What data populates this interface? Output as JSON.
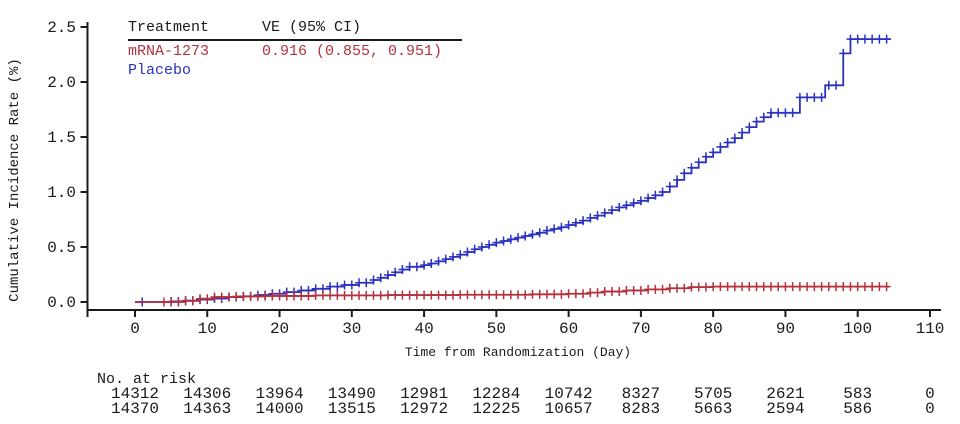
{
  "legend": {
    "header_treatment": "Treatment",
    "header_ve": "VE (95% CI)"
  },
  "colors": {
    "mrna": "#b4323e",
    "placebo": "#2b32c0",
    "axis": "#1a1a1a"
  },
  "chart_data": {
    "type": "line",
    "subtype": "cumulative-incidence-step-curves-with-censor-marks",
    "title": "",
    "xlabel": "Time from Randomization (Day)",
    "ylabel": "Cumulative Incidence Rate (%)",
    "xlim": [
      0,
      110
    ],
    "ylim": [
      0,
      2.5
    ],
    "xticks": [
      0,
      10,
      20,
      30,
      40,
      50,
      60,
      70,
      80,
      90,
      100,
      110
    ],
    "yticks": [
      0,
      0.5,
      1,
      1.5,
      2,
      2.5
    ],
    "ytick_labels": [
      "0.0",
      "0.5",
      "1.0",
      "1.5",
      "2.0",
      "2.5"
    ],
    "grid": false,
    "legend_position": "top-left",
    "series": [
      {
        "name": "mRNA-1273",
        "color": "#b4323e",
        "ve_95ci": "0.916 (0.855, 0.951)",
        "censor_days_from": 4,
        "censor_days_to": 104,
        "extra_censor_days": [],
        "step_points": [
          [
            0,
            0
          ],
          [
            7,
            0.01
          ],
          [
            9,
            0.03
          ],
          [
            11,
            0.045
          ],
          [
            14,
            0.05
          ],
          [
            18,
            0.055
          ],
          [
            25,
            0.06
          ],
          [
            35,
            0.063
          ],
          [
            45,
            0.066
          ],
          [
            55,
            0.07
          ],
          [
            60,
            0.075
          ],
          [
            63,
            0.085
          ],
          [
            65,
            0.095
          ],
          [
            68,
            0.105
          ],
          [
            71,
            0.115
          ],
          [
            74,
            0.125
          ],
          [
            77,
            0.135
          ],
          [
            80,
            0.14
          ],
          [
            104.3,
            0.14
          ]
        ]
      },
      {
        "name": "Placebo",
        "color": "#2b32c0",
        "ve_95ci": "",
        "censor_days_from": 5,
        "censor_days_to": 104,
        "extra_censor_days": [
          1
        ],
        "step_points": [
          [
            0,
            0
          ],
          [
            5,
            0.005
          ],
          [
            7,
            0.012
          ],
          [
            9,
            0.022
          ],
          [
            11,
            0.032
          ],
          [
            13,
            0.045
          ],
          [
            15,
            0.052
          ],
          [
            17,
            0.063
          ],
          [
            19,
            0.075
          ],
          [
            21,
            0.09
          ],
          [
            23,
            0.105
          ],
          [
            25,
            0.12
          ],
          [
            27,
            0.14
          ],
          [
            29,
            0.155
          ],
          [
            31,
            0.175
          ],
          [
            33,
            0.2
          ],
          [
            34,
            0.22
          ],
          [
            35,
            0.245
          ],
          [
            36,
            0.27
          ],
          [
            37,
            0.295
          ],
          [
            38,
            0.32
          ],
          [
            40,
            0.335
          ],
          [
            41,
            0.35
          ],
          [
            42,
            0.37
          ],
          [
            43,
            0.39
          ],
          [
            44,
            0.41
          ],
          [
            45,
            0.43
          ],
          [
            46,
            0.455
          ],
          [
            47,
            0.48
          ],
          [
            48,
            0.5
          ],
          [
            49,
            0.52
          ],
          [
            50,
            0.54
          ],
          [
            51,
            0.555
          ],
          [
            52,
            0.57
          ],
          [
            53,
            0.585
          ],
          [
            54,
            0.6
          ],
          [
            55,
            0.615
          ],
          [
            56,
            0.63
          ],
          [
            57,
            0.65
          ],
          [
            58,
            0.665
          ],
          [
            59,
            0.68
          ],
          [
            60,
            0.7
          ],
          [
            61,
            0.72
          ],
          [
            62,
            0.74
          ],
          [
            63,
            0.765
          ],
          [
            64,
            0.785
          ],
          [
            65,
            0.81
          ],
          [
            66,
            0.835
          ],
          [
            67,
            0.86
          ],
          [
            68,
            0.88
          ],
          [
            69,
            0.9
          ],
          [
            70,
            0.92
          ],
          [
            71,
            0.945
          ],
          [
            72,
            0.97
          ],
          [
            73,
            1.0
          ],
          [
            74,
            1.05
          ],
          [
            75,
            1.11
          ],
          [
            76,
            1.17
          ],
          [
            77,
            1.22
          ],
          [
            78,
            1.27
          ],
          [
            79,
            1.32
          ],
          [
            80,
            1.36
          ],
          [
            81,
            1.41
          ],
          [
            82,
            1.45
          ],
          [
            83,
            1.49
          ],
          [
            84,
            1.54
          ],
          [
            85,
            1.59
          ],
          [
            86,
            1.64
          ],
          [
            87,
            1.68
          ],
          [
            88,
            1.72
          ],
          [
            92,
            1.86
          ],
          [
            95.5,
            1.97
          ],
          [
            98,
            2.26
          ],
          [
            99,
            2.39
          ],
          [
            104.6,
            2.39
          ]
        ]
      }
    ]
  },
  "risk_table": {
    "label": "No. at risk",
    "columns_days": [
      0,
      10,
      20,
      30,
      40,
      50,
      60,
      70,
      80,
      90,
      100,
      110
    ],
    "rows": [
      {
        "name": "mRNA-1273",
        "color": "#b4323e",
        "values": [
          14312,
          14306,
          13964,
          13490,
          12981,
          12284,
          10742,
          8327,
          5705,
          2621,
          583,
          0
        ]
      },
      {
        "name": "Placebo",
        "color": "#2b32c0",
        "values": [
          14370,
          14363,
          14000,
          13515,
          12972,
          12225,
          10657,
          8283,
          5663,
          2594,
          586,
          0
        ]
      }
    ]
  }
}
